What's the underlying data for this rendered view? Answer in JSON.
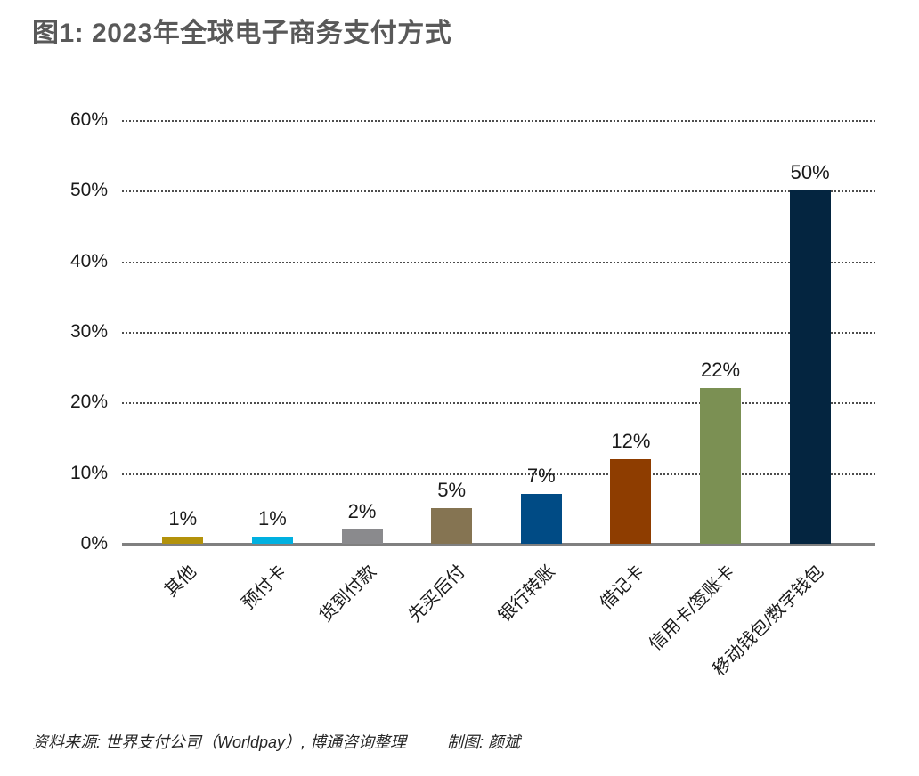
{
  "title": "图1: 2023年全球电子商务支付方式",
  "footer": {
    "source": "资料来源: 世界支付公司（Worldpay）, 博通咨询整理",
    "credit": "制图: 颜斌"
  },
  "chart_data": {
    "type": "bar",
    "title": "图1: 2023年全球电子商务支付方式",
    "categories": [
      "其他",
      "预付卡",
      "货到付款",
      "先买后付",
      "银行转账",
      "借记卡",
      "信用卡/签账卡",
      "移动钱包/数字钱包"
    ],
    "values": [
      1,
      1,
      2,
      5,
      7,
      12,
      22,
      50
    ],
    "value_labels": [
      "1%",
      "1%",
      "2%",
      "5%",
      "7%",
      "12%",
      "22%",
      "50%"
    ],
    "bar_colors": [
      "#B3920B",
      "#00B0E0",
      "#8A8A8D",
      "#857452",
      "#004B85",
      "#8E3D00",
      "#7B9053",
      "#042540"
    ],
    "xlabel": "",
    "ylabel": "",
    "ylim": [
      0,
      60
    ],
    "y_ticks": [
      "60%",
      "50%",
      "40%",
      "30%",
      "20%",
      "10%",
      "0%"
    ],
    "y_tick_values": [
      60,
      50,
      40,
      30,
      20,
      10,
      0
    ],
    "grid": "horizontal dotted lines at each 10% tick",
    "axis_line_color": "#808080",
    "gridline_color": "#4d4d4d",
    "title_color": "#595959",
    "label_rotation_deg": -45,
    "legend": "none"
  }
}
